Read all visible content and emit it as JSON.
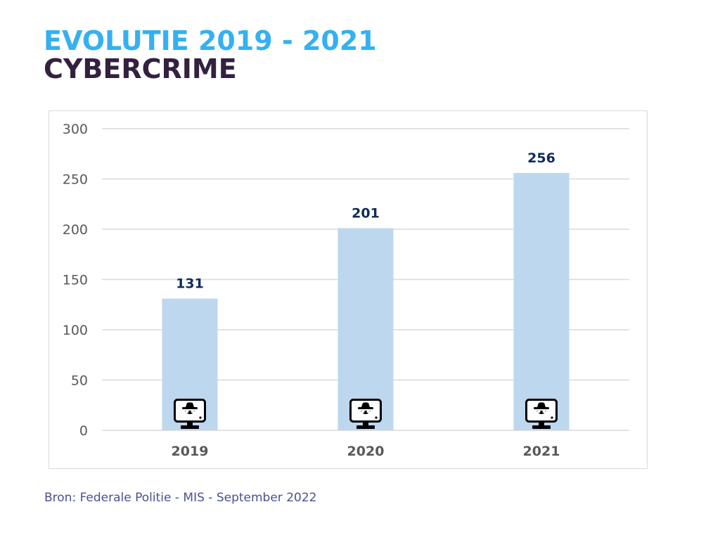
{
  "header": {
    "title_line1": "EVOLUTIE 2019 - 2021",
    "title_line2": "CYBERCRIME"
  },
  "chart_data": {
    "type": "bar",
    "title": "EVOLUTIE 2019 - 2021 CYBERCRIME",
    "xlabel": "",
    "ylabel": "",
    "categories": [
      "2019",
      "2020",
      "2021"
    ],
    "values": [
      131,
      201,
      256
    ],
    "data_labels": [
      "131",
      "201",
      "256"
    ],
    "ylim": [
      0,
      300
    ],
    "yticks": [
      0,
      50,
      100,
      150,
      200,
      250,
      300
    ],
    "ytick_labels": [
      "0",
      "50",
      "100",
      "150",
      "200",
      "250",
      "300"
    ],
    "grid": true,
    "legend": "none",
    "bar_icon": "hacker-monitor-icon",
    "colors": {
      "bar": "#bdd7ee",
      "data_label": "#0f2a5c",
      "tick_label": "#595959",
      "grid": "#d9d9d9",
      "icon": "#000000"
    }
  },
  "footer": {
    "source": "Bron: Federale Politie - MIS - September 2022"
  }
}
